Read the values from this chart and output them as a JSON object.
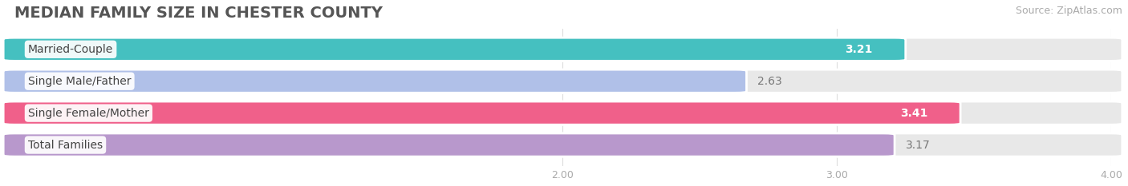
{
  "title": "MEDIAN FAMILY SIZE IN CHESTER COUNTY",
  "source": "Source: ZipAtlas.com",
  "categories": [
    "Married-Couple",
    "Single Male/Father",
    "Single Female/Mother",
    "Total Families"
  ],
  "values": [
    3.21,
    2.63,
    3.41,
    3.17
  ],
  "bar_colors": [
    "#45c0c0",
    "#b0c0e8",
    "#f0608a",
    "#b898cc"
  ],
  "value_in_bar": [
    true,
    false,
    true,
    false
  ],
  "xlim_data": [
    0.0,
    4.0
  ],
  "xstart": 0.0,
  "xticks": [
    2.0,
    3.0,
    4.0
  ],
  "background_color": "#ffffff",
  "bar_bg_color": "#e8e8e8",
  "title_fontsize": 14,
  "source_fontsize": 9,
  "label_fontsize": 10,
  "value_fontsize": 10,
  "bar_height": 0.65,
  "bar_gap": 0.18
}
